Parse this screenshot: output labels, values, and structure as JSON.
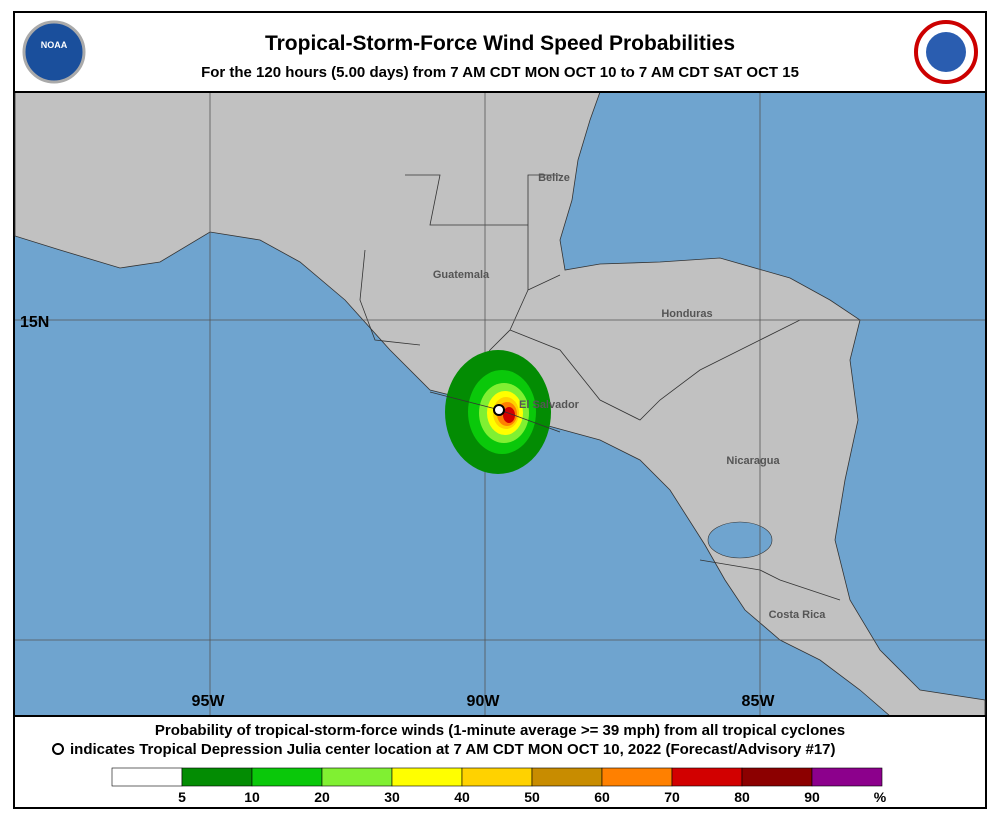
{
  "header": {
    "title": "Tropical-Storm-Force Wind Speed Probabilities",
    "subtitle": "For the 120 hours (5.00 days) from 7 AM CDT MON OCT 10 to 7 AM CDT SAT OCT 15",
    "left_logo": "NOAA"
  },
  "map": {
    "countries": [
      "Belize",
      "Guatemala",
      "Honduras",
      "El Salvador",
      "Nicaragua",
      "Costa Rica"
    ],
    "lat_labels": [
      "15N"
    ],
    "lon_labels": [
      "95W",
      "90W",
      "85W"
    ]
  },
  "footer": {
    "line1": "Probability of tropical-storm-force winds (1-minute average >= 39 mph) from all tropical cyclones",
    "line2": "indicates Tropical Depression Julia center location at 7 AM CDT MON OCT 10, 2022 (Forecast/Advisory #17)"
  },
  "legend": {
    "colors": [
      "#ffffff",
      "#038c03",
      "#0ac80a",
      "#80f032",
      "#ffff00",
      "#ffd200",
      "#c88c00",
      "#ff8000",
      "#d20000",
      "#8c0000",
      "#8c008c"
    ],
    "ticks": [
      5,
      10,
      20,
      30,
      40,
      50,
      60,
      70,
      80,
      90
    ],
    "unit": "%"
  }
}
